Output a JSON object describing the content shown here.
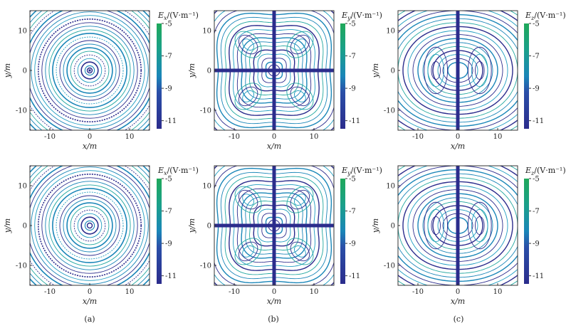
{
  "figure": {
    "captions": [
      "(a)",
      "(b)",
      "(c)"
    ]
  },
  "colors": {
    "low": "#2b2c8c",
    "mid": "#1a86b8",
    "high": "#1fa85a",
    "frame": "#333333"
  },
  "chart_data": [
    {
      "type": "contour",
      "panel": "a",
      "row": 1,
      "field": "x",
      "xlabel": "x/m",
      "ylabel": "y/m",
      "xlim": [
        -15,
        15
      ],
      "ylim": [
        -15,
        15
      ],
      "xticks": [
        -10,
        0,
        10
      ],
      "yticks": [
        10,
        0,
        -10
      ],
      "colorbar": {
        "label_main": "E",
        "label_sub": "x",
        "unit": "/(V·m⁻¹)",
        "ticks": [
          -5,
          -7,
          -9,
          -11
        ],
        "range": [
          -11.5,
          -5
        ]
      }
    },
    {
      "type": "contour",
      "panel": "b",
      "row": 1,
      "field": "y",
      "xlabel": "x/m",
      "ylabel": "y/m",
      "xlim": [
        -15,
        15
      ],
      "ylim": [
        -15,
        15
      ],
      "xticks": [
        -10,
        0,
        10
      ],
      "yticks": [
        10,
        0,
        -10
      ],
      "colorbar": {
        "label_main": "E",
        "label_sub": "y",
        "unit": "/(V·m⁻¹)",
        "ticks": [
          -5,
          -7,
          -9,
          -11
        ],
        "range": [
          -11.5,
          -5
        ]
      }
    },
    {
      "type": "contour",
      "panel": "c",
      "row": 1,
      "field": "z",
      "xlabel": "x/m",
      "ylabel": "y/m",
      "xlim": [
        -15,
        15
      ],
      "ylim": [
        -15,
        15
      ],
      "xticks": [
        -10,
        0,
        10
      ],
      "yticks": [
        10,
        0,
        -10
      ],
      "colorbar": {
        "label_main": "E",
        "label_sub": "z",
        "unit": "/(V·m⁻¹)",
        "ticks": [
          -5,
          -7,
          -9,
          -11
        ],
        "range": [
          -11.5,
          -5
        ]
      }
    },
    {
      "type": "contour",
      "panel": "a",
      "row": 2,
      "field": "x",
      "xlabel": "x/m",
      "ylabel": "y/m",
      "xlim": [
        -15,
        15
      ],
      "ylim": [
        -15,
        15
      ],
      "xticks": [
        -10,
        0,
        10
      ],
      "yticks": [
        10,
        0,
        -10
      ],
      "colorbar": {
        "label_main": "E",
        "label_sub": "x",
        "unit": "/(V·m⁻¹)",
        "ticks": [
          -5,
          -7,
          -9,
          -11
        ],
        "range": [
          -11.5,
          -5
        ]
      }
    },
    {
      "type": "contour",
      "panel": "b",
      "row": 2,
      "field": "y",
      "xlabel": "x/m",
      "ylabel": "y/m",
      "xlim": [
        -15,
        15
      ],
      "ylim": [
        -15,
        15
      ],
      "xticks": [
        -10,
        0,
        10
      ],
      "yticks": [
        10,
        0,
        -10
      ],
      "colorbar": {
        "label_main": "E",
        "label_sub": "y",
        "unit": "/(V·m⁻¹)",
        "ticks": [
          -5,
          -7,
          -9,
          -11
        ],
        "range": [
          -11.5,
          -5
        ]
      }
    },
    {
      "type": "contour",
      "panel": "c",
      "row": 2,
      "field": "z",
      "xlabel": "x/m",
      "ylabel": "y/m",
      "xlim": [
        -15,
        15
      ],
      "ylim": [
        -15,
        15
      ],
      "xticks": [
        -10,
        0,
        10
      ],
      "yticks": [
        10,
        0,
        -10
      ],
      "colorbar": {
        "label_main": "E",
        "label_sub": "z",
        "unit": "/(V·m⁻¹)",
        "ticks": [
          -5,
          -7,
          -9,
          -11
        ],
        "range": [
          -11.5,
          -5
        ]
      }
    }
  ]
}
